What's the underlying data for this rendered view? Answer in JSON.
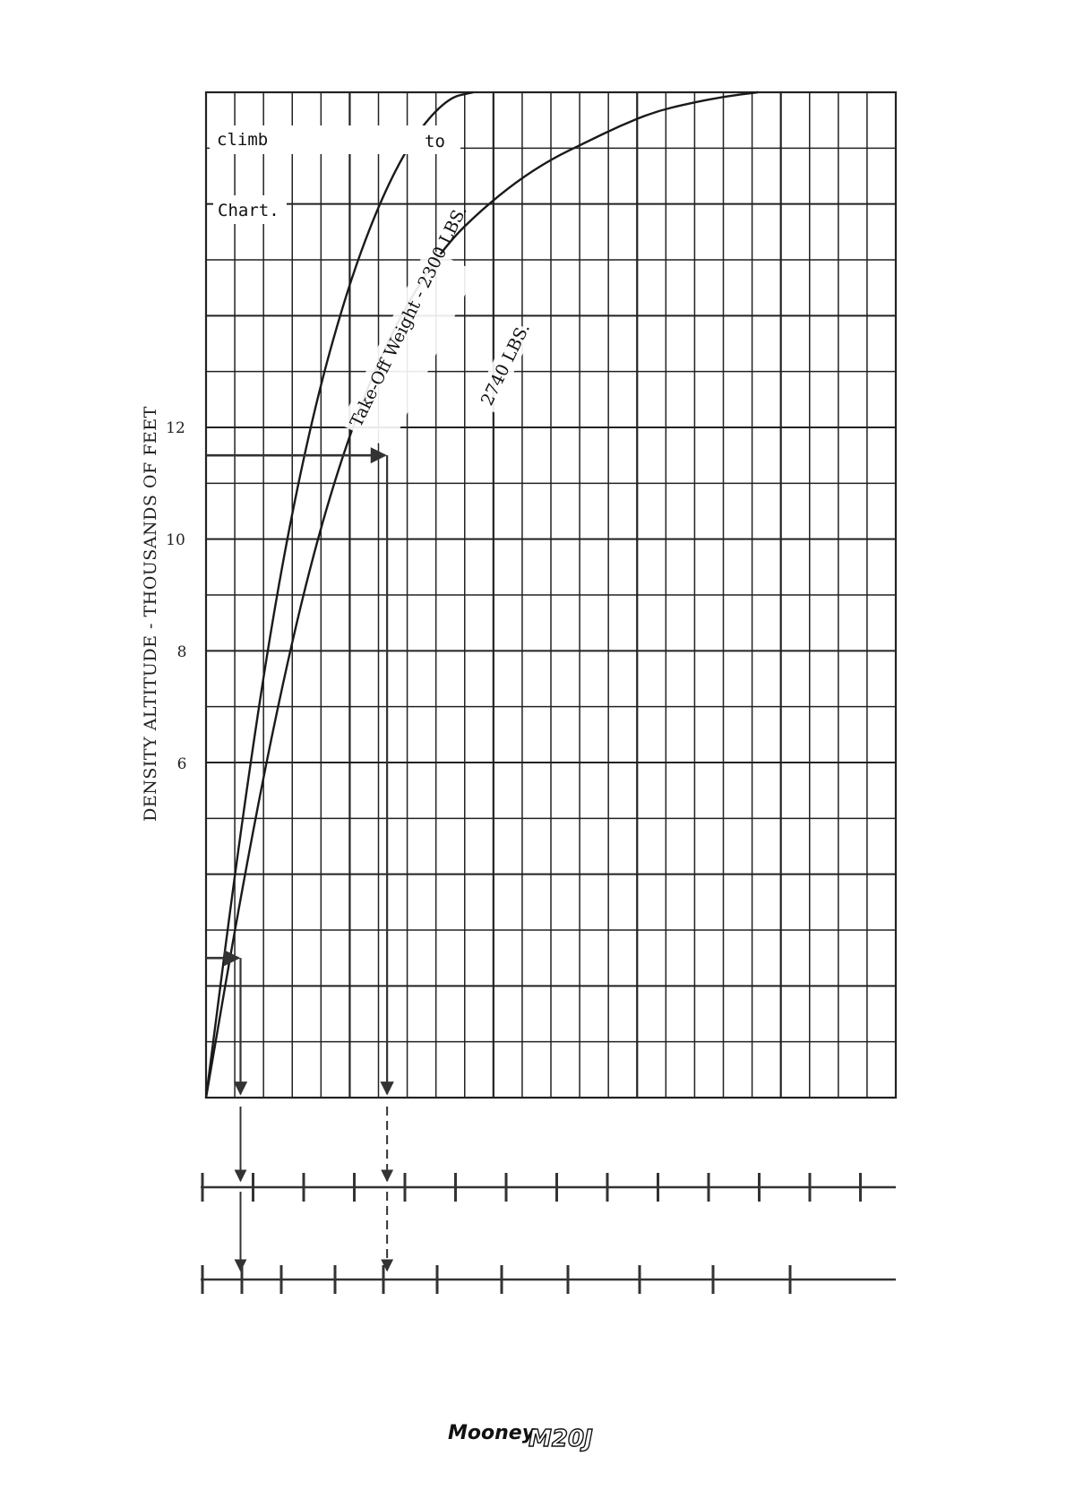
{
  "chart_data": {
    "type": "line",
    "ylabel": "DENSITY ALTITUDE - THOUSANDS OF FEET",
    "y_tick_labels": [
      "6",
      "8",
      "10",
      "12"
    ],
    "ylim": [
      0,
      18
    ],
    "grid": true,
    "annotations": [
      "climb",
      "to",
      "Chart."
    ],
    "series": [
      {
        "name": "Take-Off Weight - 2300 LBS.",
        "x": [
          0.0,
          0.2,
          0.4,
          0.6,
          0.8,
          1.0,
          1.2,
          1.4,
          1.55
        ],
        "y": [
          0.0,
          4.8,
          8.9,
          12.0,
          14.3,
          16.0,
          17.2,
          17.9,
          18.0
        ]
      },
      {
        "name": "2740 LBS.",
        "x": [
          0.0,
          0.2,
          0.4,
          0.6,
          0.8,
          1.0,
          1.2,
          1.4,
          1.6,
          1.8,
          2.0,
          2.2,
          2.4,
          2.6,
          2.8,
          3.0,
          3.2
        ],
        "y": [
          0.0,
          3.6,
          6.8,
          9.5,
          11.6,
          13.2,
          14.4,
          15.3,
          15.9,
          16.4,
          16.8,
          17.1,
          17.4,
          17.65,
          17.8,
          17.92,
          18.0
        ]
      }
    ],
    "example_path": [
      {
        "x": 0.2,
        "y": 2.5
      },
      {
        "x": 1.05,
        "y": 11.5
      }
    ]
  },
  "footer": {
    "brand": "Mooney",
    "model": "M20J"
  }
}
